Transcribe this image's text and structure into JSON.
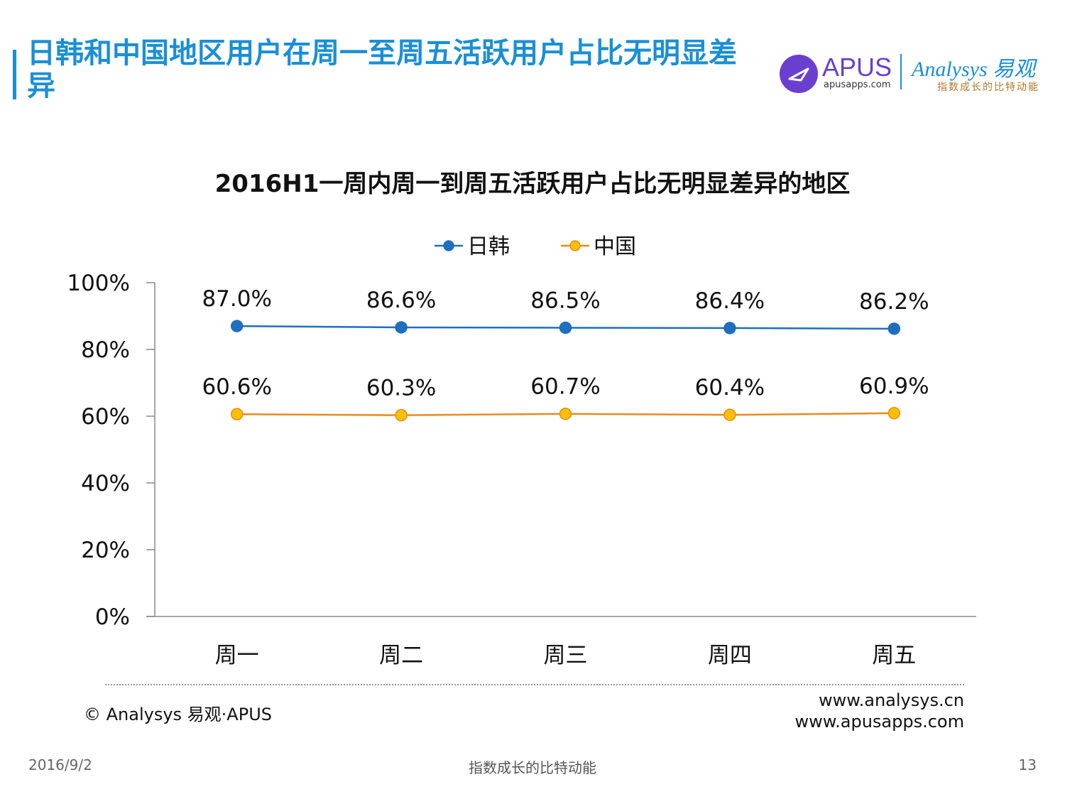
{
  "slide": {
    "title": "日韩和中国地区用户在周一至周五活跃用户占比无明显差异",
    "footer_copyright": "© Analysys 易观·APUS",
    "footer_url_1": "www.analysys.cn",
    "footer_url_2": "www.apusapps.com",
    "date": "2016/9/2",
    "slogan": "指数成长的比特动能",
    "page_number": "13"
  },
  "logos": {
    "apus_name": "APUS",
    "apus_url": "apusapps.com",
    "analysys_name": "Analysys 易观",
    "analysys_slogan": "指数成长的比特动能"
  },
  "colors": {
    "title": "#1a8fd6",
    "series_japan_korea": "#1f6fbf",
    "series_china": "#e98a1e",
    "china_marker_fill": "#ffc000"
  },
  "chart_data": {
    "type": "line",
    "title": "2016H1一周内周一到周五活跃用户占比无明显差异的地区",
    "categories": [
      "周一",
      "周二",
      "周三",
      "周四",
      "周五"
    ],
    "series": [
      {
        "name": "日韩",
        "values": [
          87.0,
          86.6,
          86.5,
          86.4,
          86.2
        ],
        "labels": [
          "87.0%",
          "86.6%",
          "86.5%",
          "86.4%",
          "86.2%"
        ]
      },
      {
        "name": "中国",
        "values": [
          60.6,
          60.3,
          60.7,
          60.4,
          60.9
        ],
        "labels": [
          "60.6%",
          "60.3%",
          "60.7%",
          "60.4%",
          "60.9%"
        ]
      }
    ],
    "y_ticks": [
      "0%",
      "20%",
      "40%",
      "60%",
      "80%",
      "100%"
    ],
    "ylim": [
      0,
      100
    ],
    "grid": false,
    "legend": "top-center"
  }
}
